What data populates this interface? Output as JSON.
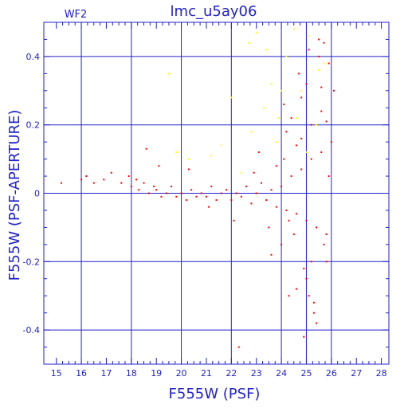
{
  "chart_data": {
    "type": "scatter",
    "title": "lmc_u5ay06",
    "panel_label": "WF2",
    "xlabel": "F555W (PSF)",
    "ylabel": "F555W (PSF-APERTURE)",
    "xlim": [
      14.5,
      28.3
    ],
    "ylim": [
      -0.5,
      0.5
    ],
    "x_ticks_major": [
      15,
      16,
      17,
      18,
      19,
      20,
      21,
      22,
      23,
      24,
      25,
      26,
      27,
      28
    ],
    "x_tick_labels": [
      "15",
      "16",
      "17",
      "18",
      "19",
      "20",
      "21",
      "22",
      "23",
      "24",
      "25",
      "26",
      "27",
      "28"
    ],
    "y_ticks_major": [
      -0.4,
      -0.2,
      0,
      0.2,
      0.4
    ],
    "y_tick_labels": [
      "-0.4",
      "-0.2",
      "0",
      "0.2",
      "0.4"
    ],
    "grid": true,
    "grid_x": [
      16,
      18,
      20,
      22,
      24,
      25,
      26
    ],
    "grid_y": [
      -0.4,
      -0.2,
      0,
      0.2,
      0.4
    ],
    "colors": {
      "axis": "#2222cc",
      "good_points": "#ff0000",
      "rejected_points": "#ffff00"
    },
    "series": [
      {
        "color": "#ff0000",
        "x": [
          15.2,
          16.0,
          16.2,
          16.5,
          16.9,
          17.2,
          17.6,
          17.9,
          18.0,
          18.2,
          18.3,
          18.5,
          18.7,
          18.9,
          19.0,
          19.2,
          19.4,
          19.6,
          19.8,
          20.0,
          20.2,
          20.4,
          20.6,
          20.8,
          21.0,
          21.2,
          21.4,
          21.6,
          21.8,
          22.0,
          22.2,
          22.4,
          22.6,
          22.8,
          23.0,
          23.2,
          23.4,
          23.6,
          23.8,
          24.0,
          24.2,
          24.4,
          24.6,
          24.8,
          25.0,
          25.2,
          25.4,
          25.6,
          25.8,
          26.0,
          22.3,
          23.1,
          23.6,
          24.1,
          24.3,
          24.7,
          24.9,
          25.1,
          25.3,
          25.5,
          25.7,
          25.9,
          24.2,
          24.5,
          24.8,
          25.0,
          25.2,
          25.4,
          25.6,
          25.8,
          24.0,
          24.4,
          24.6,
          25.0,
          25.3,
          25.6,
          25.9,
          24.1,
          24.9,
          25.5,
          26.1,
          23.8,
          24.3,
          24.8,
          25.2,
          25.7,
          22.9,
          23.5,
          24.6,
          25.1,
          25.8,
          18.6,
          19.1,
          20.3,
          21.1,
          22.1
        ],
        "y": [
          0.03,
          0.04,
          0.05,
          0.03,
          0.04,
          0.06,
          0.03,
          0.05,
          0.02,
          0.04,
          0.01,
          0.03,
          0.0,
          0.02,
          0.01,
          -0.01,
          0.0,
          0.02,
          -0.01,
          0.0,
          -0.02,
          0.01,
          -0.01,
          0.0,
          -0.01,
          0.02,
          -0.02,
          0.0,
          0.01,
          -0.02,
          0.0,
          -0.01,
          0.02,
          -0.03,
          0.0,
          0.03,
          -0.02,
          0.01,
          -0.04,
          0.02,
          -0.05,
          0.05,
          -0.06,
          0.07,
          -0.08,
          0.1,
          -0.1,
          0.12,
          -0.12,
          0.15,
          -0.45,
          0.12,
          -0.18,
          0.26,
          -0.3,
          0.35,
          -0.22,
          0.42,
          -0.32,
          0.45,
          -0.15,
          0.38,
          0.18,
          -0.12,
          0.28,
          -0.25,
          0.2,
          -0.38,
          0.31,
          -0.2,
          -0.15,
          0.22,
          -0.28,
          0.32,
          -0.35,
          0.24,
          0.05,
          0.1,
          -0.42,
          0.4,
          0.3,
          0.08,
          -0.08,
          0.16,
          -0.2,
          0.44,
          0.06,
          -0.1,
          0.14,
          -0.3,
          0.21,
          0.13,
          0.08,
          0.07,
          -0.04,
          -0.08
        ]
      },
      {
        "color": "#ffff00",
        "x": [
          19.5,
          19.8,
          20.3,
          21.2,
          21.6,
          22.0,
          22.4,
          22.8,
          23.0,
          23.3,
          23.6,
          23.9,
          24.2,
          24.5,
          24.8,
          25.1,
          25.4,
          25.7,
          23.4,
          23.8,
          24.0,
          24.6,
          25.0,
          25.5,
          22.7
        ],
        "y": [
          0.35,
          0.12,
          0.1,
          0.11,
          0.14,
          0.28,
          0.06,
          0.18,
          0.47,
          0.25,
          0.32,
          0.22,
          0.4,
          0.48,
          0.3,
          0.46,
          0.2,
          0.38,
          0.42,
          0.15,
          0.3,
          0.22,
          0.12,
          0.36,
          0.44
        ]
      }
    ]
  }
}
